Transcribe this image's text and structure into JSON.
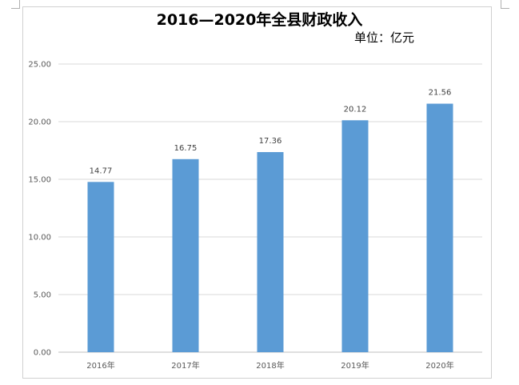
{
  "chart_data": {
    "type": "bar",
    "title": "2016—2020年全县财政收入",
    "unit_label": "单位：亿元",
    "categories": [
      "2016年",
      "2017年",
      "2018年",
      "2019年",
      "2020年"
    ],
    "values": [
      14.77,
      16.75,
      17.36,
      20.12,
      21.56
    ],
    "data_labels": [
      "14.77",
      "16.75",
      "17.36",
      "20.12",
      "21.56"
    ],
    "y_ticks": [
      "0.00",
      "5.00",
      "10.00",
      "15.00",
      "20.00",
      "25.00"
    ],
    "ylim": [
      0,
      25
    ],
    "grid": true,
    "legend": "none",
    "bar_color": "#5b9bd5",
    "xlabel": "",
    "ylabel": ""
  }
}
